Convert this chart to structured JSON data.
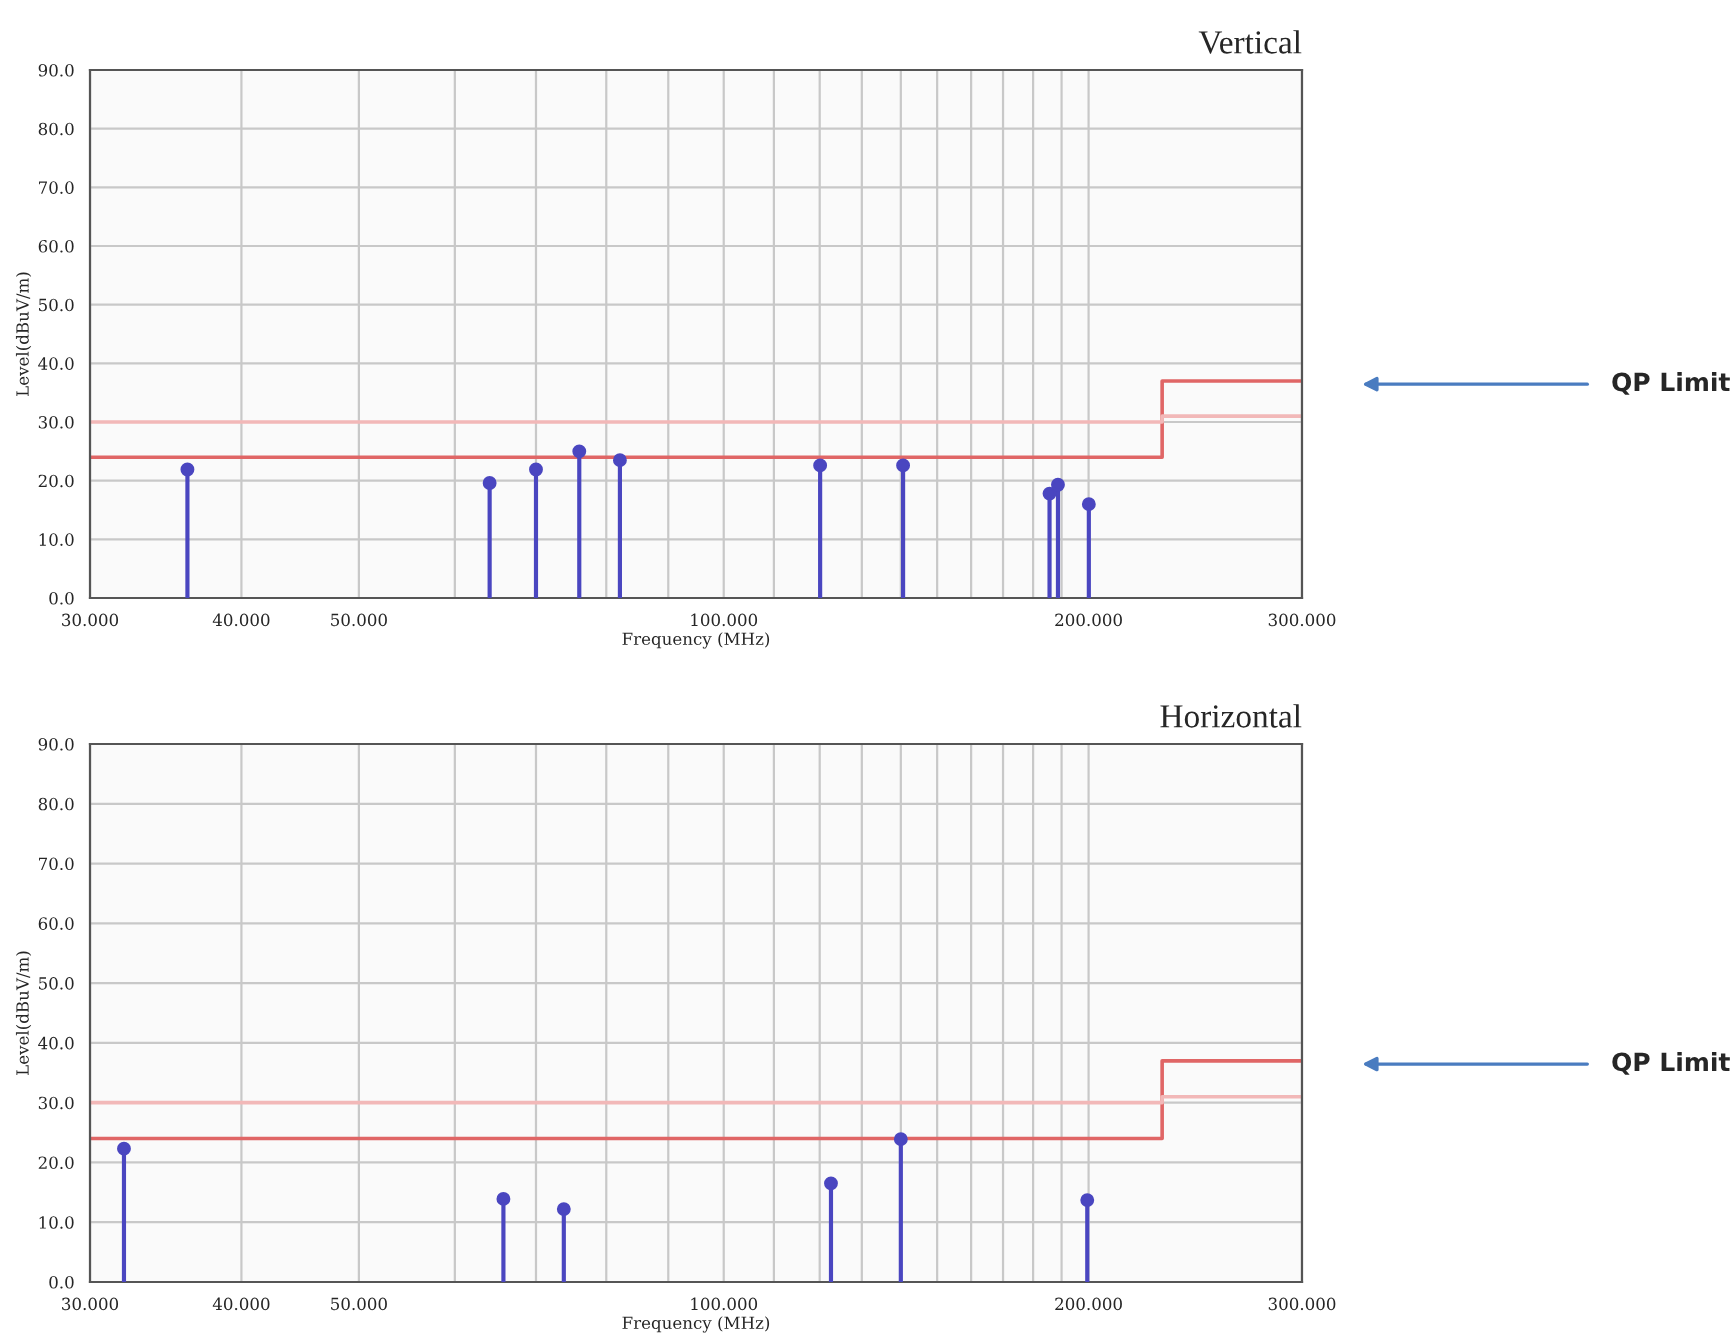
{
  "chart_data": [
    {
      "type": "lollipop",
      "title": "Vertical",
      "xlabel": "Frequency (MHz)",
      "ylabel": "Level(dBuV/m)",
      "log": "x",
      "xlim": [
        30,
        300
      ],
      "xticks": [
        {
          "value": 30,
          "label": "30.000"
        },
        {
          "value": 40,
          "label": "40.000"
        },
        {
          "value": 50,
          "label": "50.000"
        },
        {
          "value": 60,
          "label": null
        },
        {
          "value": 70,
          "label": null
        },
        {
          "value": 80,
          "label": null
        },
        {
          "value": 90,
          "label": null
        },
        {
          "value": 100,
          "label": "100.000"
        },
        {
          "value": 110,
          "label": null
        },
        {
          "value": 120,
          "label": null
        },
        {
          "value": 130,
          "label": null
        },
        {
          "value": 140,
          "label": null
        },
        {
          "value": 150,
          "label": null
        },
        {
          "value": 160,
          "label": null
        },
        {
          "value": 170,
          "label": null
        },
        {
          "value": 180,
          "label": null
        },
        {
          "value": 190,
          "label": null
        },
        {
          "value": 200,
          "label": "200.000"
        },
        {
          "value": 300,
          "label": "300.000"
        }
      ],
      "ylim": [
        0,
        90
      ],
      "yticks": [
        {
          "value": 0,
          "label": "0.0"
        },
        {
          "value": 10,
          "label": "10.0"
        },
        {
          "value": 20,
          "label": "20.0"
        },
        {
          "value": 30,
          "label": "30.0"
        },
        {
          "value": 40,
          "label": "40.0"
        },
        {
          "value": 50,
          "label": "50.0"
        },
        {
          "value": 60,
          "label": "60.0"
        },
        {
          "value": 70,
          "label": "70.0"
        },
        {
          "value": 80,
          "label": "80.0"
        },
        {
          "value": 90,
          "label": "90.0"
        }
      ],
      "grid": true,
      "series": [
        {
          "type": "line",
          "color": "#e06666",
          "x": [
            30,
            230,
            230,
            300
          ],
          "values": [
            24,
            24,
            37,
            37
          ]
        },
        {
          "type": "line",
          "color": "#f2b8b8",
          "x": [
            30,
            230,
            230,
            300
          ],
          "values": [
            30,
            30,
            31,
            31
          ]
        },
        {
          "marker": "circle",
          "color": "#4a46c0",
          "x": [
            36.1,
            64.1,
            70.0,
            76.0,
            82.1,
            120.1,
            140.6,
            185.7,
            188.7,
            200.1
          ],
          "values": [
            21.9,
            19.6,
            21.9,
            25.0,
            23.5,
            22.6,
            22.6,
            17.8,
            19.3,
            16.0
          ]
        }
      ],
      "annotations": [
        "QP Limit"
      ]
    },
    {
      "type": "lollipop",
      "title": "Horizontal",
      "xlabel": "Frequency (MHz)",
      "ylabel": "Level(dBuV/m)",
      "log": "x",
      "xlim": [
        30,
        300
      ],
      "xticks": [
        {
          "value": 30,
          "label": "30.000"
        },
        {
          "value": 40,
          "label": "40.000"
        },
        {
          "value": 50,
          "label": "50.000"
        },
        {
          "value": 60,
          "label": null
        },
        {
          "value": 70,
          "label": null
        },
        {
          "value": 80,
          "label": null
        },
        {
          "value": 90,
          "label": null
        },
        {
          "value": 100,
          "label": "100.000"
        },
        {
          "value": 110,
          "label": null
        },
        {
          "value": 120,
          "label": null
        },
        {
          "value": 130,
          "label": null
        },
        {
          "value": 140,
          "label": null
        },
        {
          "value": 150,
          "label": null
        },
        {
          "value": 160,
          "label": null
        },
        {
          "value": 170,
          "label": null
        },
        {
          "value": 180,
          "label": null
        },
        {
          "value": 190,
          "label": null
        },
        {
          "value": 200,
          "label": "200.000"
        },
        {
          "value": 300,
          "label": "300.000"
        }
      ],
      "ylim": [
        0,
        90
      ],
      "yticks": [
        {
          "value": 0,
          "label": "0.0"
        },
        {
          "value": 10,
          "label": "10.0"
        },
        {
          "value": 20,
          "label": "20.0"
        },
        {
          "value": 30,
          "label": "30.0"
        },
        {
          "value": 40,
          "label": "40.0"
        },
        {
          "value": 50,
          "label": "50.0"
        },
        {
          "value": 60,
          "label": "60.0"
        },
        {
          "value": 70,
          "label": "70.0"
        },
        {
          "value": 80,
          "label": "80.0"
        },
        {
          "value": 90,
          "label": "90.0"
        }
      ],
      "grid": true,
      "series": [
        {
          "type": "line",
          "color": "#e06666",
          "x": [
            30,
            230,
            230,
            300
          ],
          "values": [
            24,
            24,
            37,
            37
          ]
        },
        {
          "type": "line",
          "color": "#f2b8b8",
          "x": [
            30,
            230,
            230,
            300
          ],
          "values": [
            30,
            30,
            31,
            31
          ]
        },
        {
          "marker": "circle",
          "color": "#4a46c0",
          "x": [
            32.0,
            65.8,
            73.8,
            122.6,
            140.0,
            199.5
          ],
          "values": [
            22.3,
            13.9,
            12.2,
            16.5,
            23.9,
            13.7
          ]
        }
      ],
      "annotations": [
        "QP Limit"
      ]
    }
  ]
}
